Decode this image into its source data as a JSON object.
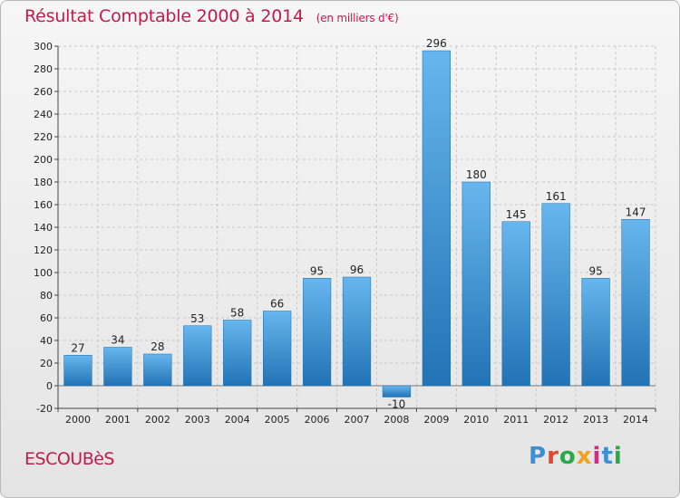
{
  "title": {
    "main": "Résultat Comptable 2000 à 2014",
    "unit": "(en milliers d'€)"
  },
  "commune": "ESCOUBèS",
  "logo": {
    "text": "Proxiti",
    "letter_colors": [
      "#3b8fd4",
      "#e8442a",
      "#2aa84a",
      "#f4a21c",
      "#d42a8a",
      "#3b8fd4",
      "#2aa84a"
    ]
  },
  "colors": {
    "bar_light": "#67b6ee",
    "bar_dark": "#2273b5",
    "title": "#c41a4a"
  },
  "chart_data": {
    "type": "bar",
    "title": "Résultat Comptable 2000 à 2014",
    "xlabel": "",
    "ylabel": "",
    "ylim": [
      -20,
      300
    ],
    "yticks": [
      -20,
      0,
      20,
      40,
      60,
      80,
      100,
      120,
      140,
      160,
      180,
      200,
      220,
      240,
      260,
      280,
      300
    ],
    "grid": true,
    "categories": [
      "2000",
      "2001",
      "2002",
      "2003",
      "2004",
      "2005",
      "2006",
      "2007",
      "2008",
      "2009",
      "2010",
      "2011",
      "2012",
      "2013",
      "2014"
    ],
    "values": [
      27,
      34,
      28,
      53,
      58,
      66,
      95,
      96,
      -10,
      296,
      180,
      145,
      161,
      95,
      147
    ]
  }
}
